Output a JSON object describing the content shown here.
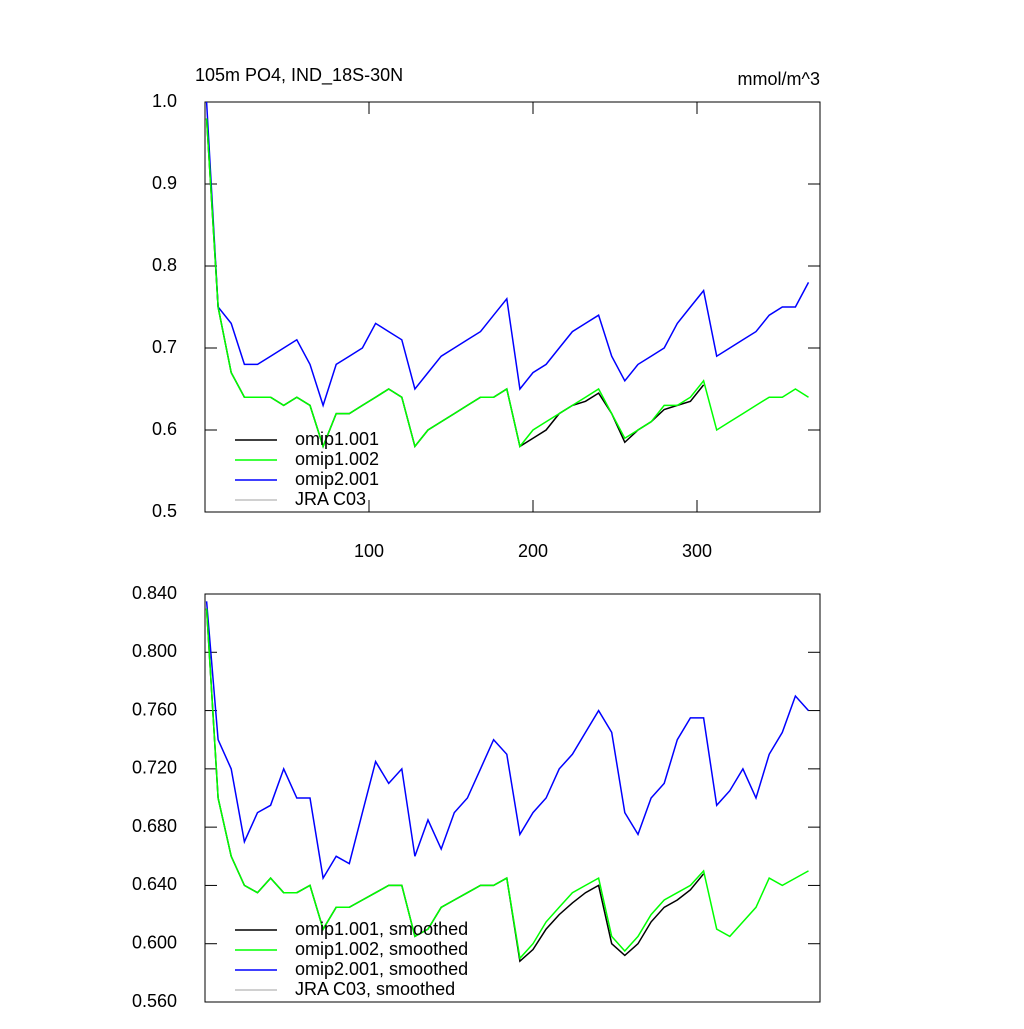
{
  "chart_data": [
    {
      "type": "line",
      "title": "105m PO4, IND_18S-30N",
      "units": "mmol/m^3",
      "x": [
        1,
        8,
        16,
        24,
        32,
        40,
        48,
        56,
        64,
        72,
        80,
        88,
        96,
        104,
        112,
        120,
        128,
        136,
        144,
        152,
        160,
        168,
        176,
        184,
        192,
        200,
        208,
        216,
        224,
        232,
        240,
        248,
        256,
        264,
        272,
        280,
        288,
        296,
        304,
        312,
        320,
        328,
        336,
        344,
        352,
        360,
        368
      ],
      "xlim": [
        0,
        375
      ],
      "xticks": [
        100,
        200,
        300
      ],
      "ylim": [
        0.5,
        1.0
      ],
      "yticks": [
        0.5,
        0.6,
        0.7,
        0.8,
        0.9,
        {
          "value": 1.0,
          "label": "1.0"
        }
      ],
      "legend": "lower left",
      "series": [
        {
          "name": "omip1.001",
          "color": "#000000",
          "values": [
            0.98,
            0.75,
            0.67,
            0.64,
            0.64,
            0.64,
            0.63,
            0.64,
            0.63,
            0.58,
            0.62,
            0.62,
            0.63,
            0.64,
            0.65,
            0.64,
            0.58,
            0.6,
            0.61,
            0.62,
            0.63,
            0.64,
            0.64,
            0.65,
            0.58,
            0.59,
            0.6,
            0.62,
            0.63,
            0.635,
            0.645,
            0.62,
            0.585,
            0.6,
            0.61,
            0.625,
            0.63,
            0.635,
            0.655,
            null,
            null,
            null,
            null,
            null,
            null,
            null,
            null
          ]
        },
        {
          "name": "omip1.002",
          "color": "#00ff00",
          "values": [
            0.98,
            0.75,
            0.67,
            0.64,
            0.64,
            0.64,
            0.63,
            0.64,
            0.63,
            0.58,
            0.62,
            0.62,
            0.63,
            0.64,
            0.65,
            0.64,
            0.58,
            0.6,
            0.61,
            0.62,
            0.63,
            0.64,
            0.64,
            0.65,
            0.58,
            0.6,
            0.61,
            0.62,
            0.63,
            0.64,
            0.65,
            0.62,
            0.59,
            0.6,
            0.61,
            0.63,
            0.63,
            0.64,
            0.66,
            0.6,
            0.61,
            0.62,
            0.63,
            0.64,
            0.64,
            0.65,
            0.64
          ]
        },
        {
          "name": "omip2.001",
          "color": "#0000ff",
          "values": [
            1.0,
            0.75,
            0.73,
            0.68,
            0.68,
            0.69,
            0.7,
            0.71,
            0.68,
            0.63,
            0.68,
            0.69,
            0.7,
            0.73,
            0.72,
            0.71,
            0.65,
            0.67,
            0.69,
            0.7,
            0.71,
            0.72,
            0.74,
            0.76,
            0.65,
            0.67,
            0.68,
            0.7,
            0.72,
            0.73,
            0.74,
            0.69,
            0.66,
            0.68,
            0.69,
            0.7,
            0.73,
            0.75,
            0.77,
            0.69,
            0.7,
            0.71,
            0.72,
            0.74,
            0.75,
            0.75,
            0.78
          ]
        },
        {
          "name": "JRA C03",
          "color": "#c0c0c0",
          "values": [
            null,
            null,
            null,
            null,
            null,
            null,
            null,
            null,
            null,
            null,
            null,
            null,
            null,
            null,
            null,
            null,
            null,
            null,
            null,
            null,
            null,
            null,
            null,
            null,
            null,
            null,
            null,
            null,
            null,
            null,
            null,
            null,
            null,
            null,
            null,
            null,
            null,
            null,
            null,
            null,
            null,
            null,
            null,
            null,
            null,
            null,
            null
          ]
        }
      ]
    },
    {
      "type": "line",
      "x": [
        1,
        8,
        16,
        24,
        32,
        40,
        48,
        56,
        64,
        72,
        80,
        88,
        96,
        104,
        112,
        120,
        128,
        136,
        144,
        152,
        160,
        168,
        176,
        184,
        192,
        200,
        208,
        216,
        224,
        232,
        240,
        248,
        256,
        264,
        272,
        280,
        288,
        296,
        304,
        312,
        320,
        328,
        336,
        344,
        352,
        360,
        368
      ],
      "xlim": [
        0,
        375
      ],
      "ylim": [
        0.56,
        0.84
      ],
      "yticks": [
        {
          "value": 0.56,
          "label": "0.560"
        },
        {
          "value": 0.6,
          "label": "0.600"
        },
        {
          "value": 0.64,
          "label": "0.640"
        },
        {
          "value": 0.68,
          "label": "0.680"
        },
        {
          "value": 0.72,
          "label": "0.720"
        },
        {
          "value": 0.76,
          "label": "0.760"
        },
        {
          "value": 0.8,
          "label": "0.800"
        },
        {
          "value": 0.84,
          "label": "0.840"
        }
      ],
      "legend": "lower left",
      "series": [
        {
          "name": "omip1.001, smoothed",
          "color": "#000000",
          "values": [
            0.83,
            0.7,
            0.66,
            0.64,
            0.635,
            0.645,
            0.635,
            0.635,
            0.64,
            0.61,
            0.625,
            0.625,
            0.63,
            0.635,
            0.64,
            0.64,
            0.605,
            0.61,
            0.625,
            0.63,
            0.635,
            0.64,
            0.64,
            0.645,
            0.588,
            0.596,
            0.61,
            0.62,
            0.628,
            0.635,
            0.64,
            0.6,
            0.592,
            0.6,
            0.615,
            0.625,
            0.63,
            0.637,
            0.648,
            null,
            null,
            null,
            null,
            null,
            null,
            null,
            null
          ]
        },
        {
          "name": "omip1.002, smoothed",
          "color": "#00ff00",
          "values": [
            0.83,
            0.7,
            0.66,
            0.64,
            0.635,
            0.645,
            0.635,
            0.635,
            0.64,
            0.61,
            0.625,
            0.625,
            0.63,
            0.635,
            0.64,
            0.64,
            0.605,
            0.61,
            0.625,
            0.63,
            0.635,
            0.64,
            0.64,
            0.645,
            0.59,
            0.6,
            0.615,
            0.625,
            0.635,
            0.64,
            0.645,
            0.605,
            0.595,
            0.605,
            0.62,
            0.63,
            0.635,
            0.64,
            0.65,
            0.61,
            0.605,
            0.615,
            0.625,
            0.645,
            0.64,
            0.645,
            0.65
          ]
        },
        {
          "name": "omip2.001, smoothed",
          "color": "#0000ff",
          "values": [
            0.835,
            0.74,
            0.72,
            0.67,
            0.69,
            0.695,
            0.72,
            0.7,
            0.7,
            0.645,
            0.66,
            0.655,
            0.69,
            0.725,
            0.71,
            0.72,
            0.66,
            0.685,
            0.665,
            0.69,
            0.7,
            0.72,
            0.74,
            0.73,
            0.675,
            0.69,
            0.7,
            0.72,
            0.73,
            0.745,
            0.76,
            0.745,
            0.69,
            0.675,
            0.7,
            0.71,
            0.74,
            0.755,
            0.755,
            0.695,
            0.705,
            0.72,
            0.7,
            0.73,
            0.745,
            0.77,
            0.76
          ]
        },
        {
          "name": "JRA C03, smoothed",
          "color": "#c0c0c0",
          "values": [
            null,
            null,
            null,
            null,
            null,
            null,
            null,
            null,
            null,
            null,
            null,
            null,
            null,
            null,
            null,
            null,
            null,
            null,
            null,
            null,
            null,
            null,
            null,
            null,
            null,
            null,
            null,
            null,
            null,
            null,
            null,
            null,
            null,
            null,
            null,
            null,
            null,
            null,
            null,
            null,
            null,
            null,
            null,
            null,
            null,
            null,
            null
          ]
        }
      ]
    }
  ]
}
